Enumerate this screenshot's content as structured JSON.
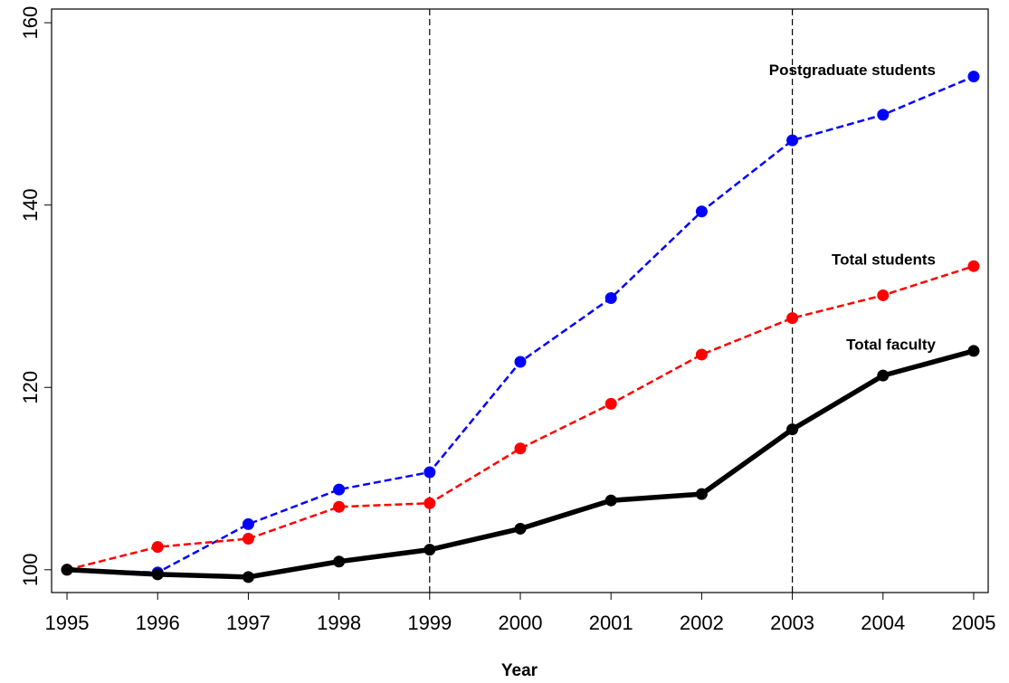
{
  "chart_data": {
    "type": "line",
    "x_label": "Year",
    "x": [
      1995,
      1996,
      1997,
      1998,
      1999,
      2000,
      2001,
      2002,
      2003,
      2004,
      2005
    ],
    "xlim": [
      1994.83,
      2005.16
    ],
    "xticks": [
      1995,
      1996,
      1997,
      1998,
      1999,
      2000,
      2001,
      2002,
      2003,
      2004,
      2005
    ],
    "ylim": [
      97.5,
      161.5
    ],
    "yticks": [
      100,
      120,
      140,
      160
    ],
    "vlines": [
      1999,
      2003
    ],
    "series": [
      {
        "name": "Postgraduate students",
        "color": "#0000ff",
        "dashed": true,
        "width": 2.5,
        "values": [
          100,
          99.7,
          105.0,
          108.8,
          110.7,
          122.8,
          129.8,
          139.3,
          147.1,
          149.9,
          154.1
        ]
      },
      {
        "name": "Total students",
        "color": "#ff0000",
        "dashed": true,
        "width": 2.5,
        "values": [
          100,
          102.5,
          103.4,
          106.9,
          107.3,
          113.3,
          118.2,
          123.6,
          127.6,
          130.1,
          133.3
        ]
      },
      {
        "name": "Total faculty",
        "color": "#000000",
        "dashed": false,
        "width": 5.5,
        "values": [
          100,
          99.5,
          99.2,
          100.9,
          102.2,
          104.5,
          107.6,
          108.3,
          115.4,
          121.3,
          124.0
        ]
      }
    ]
  }
}
